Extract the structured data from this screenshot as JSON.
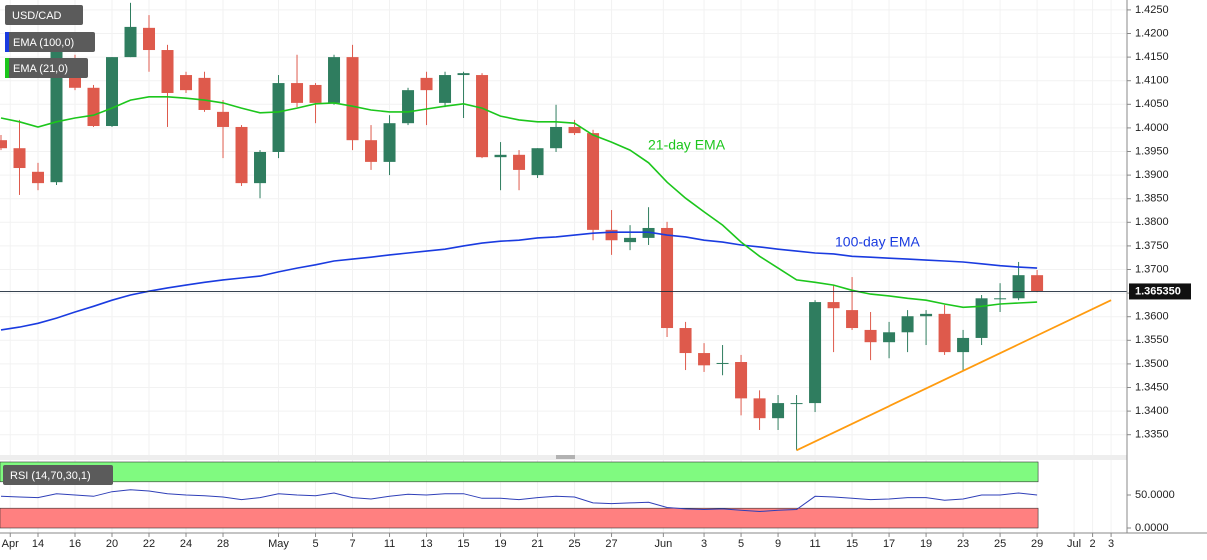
{
  "chart_data": [
    {
      "type": "candlestick",
      "symbol": "USD/CAD",
      "open": [
        1.3974,
        1.3957,
        1.3907,
        1.3885,
        1.4112,
        1.4085,
        1.4004,
        1.415,
        1.4212,
        1.4165,
        1.4112,
        1.4106,
        1.4034,
        1.4002,
        1.3883,
        1.3949,
        1.4095,
        1.4091,
        1.4053,
        1.415,
        1.3974,
        1.3928,
        1.401,
        1.4106,
        1.4053,
        1.4112,
        1.4112,
        1.3938,
        1.3943,
        1.39,
        1.3957,
        1.4002,
        1.3989,
        1.3784,
        1.3758,
        1.3767,
        1.3788,
        1.3576,
        1.3523,
        1.3502,
        1.3504,
        1.3427,
        1.3385,
        1.3417,
        1.3417,
        1.3631,
        1.3614,
        1.3572,
        1.3546,
        1.3567,
        1.3601,
        1.3606,
        1.3525,
        1.3555,
        1.3639,
        1.3639,
        1.3688
      ],
      "high": [
        1.3985,
        1.4017,
        1.3926,
        1.4176,
        1.4155,
        1.4091,
        1.415,
        1.4265,
        1.4239,
        1.4176,
        1.4119,
        1.4119,
        1.4059,
        1.4006,
        1.3953,
        1.4112,
        1.4155,
        1.4095,
        1.4155,
        1.4176,
        1.4006,
        1.4027,
        1.4085,
        1.4119,
        1.4119,
        1.4119,
        1.4116,
        1.397,
        1.3953,
        1.3957,
        1.4049,
        1.4017,
        1.3996,
        1.3826,
        1.3794,
        1.3832,
        1.3801,
        1.3589,
        1.3544,
        1.354,
        1.3519,
        1.3444,
        1.3434,
        1.3434,
        1.3635,
        1.3667,
        1.3684,
        1.361,
        1.3589,
        1.3614,
        1.3614,
        1.3625,
        1.3572,
        1.3646,
        1.3671,
        1.3716,
        1.3699
      ],
      "low": [
        1.3953,
        1.3858,
        1.3868,
        1.3879,
        1.408,
        1.4002,
        1.4002,
        1.415,
        1.4119,
        1.4002,
        1.4074,
        1.4034,
        1.3936,
        1.3877,
        1.3851,
        1.3936,
        1.4044,
        1.401,
        1.4049,
        1.3953,
        1.3911,
        1.39,
        1.4006,
        1.4006,
        1.4044,
        1.4021,
        1.3936,
        1.3868,
        1.3868,
        1.3894,
        1.3949,
        1.3985,
        1.3762,
        1.3731,
        1.3741,
        1.3752,
        1.3557,
        1.3487,
        1.3483,
        1.3476,
        1.3391,
        1.336,
        1.336,
        1.3317,
        1.3398,
        1.3525,
        1.3572,
        1.3508,
        1.3512,
        1.3525,
        1.354,
        1.3519,
        1.3487,
        1.354,
        1.361,
        1.3635,
        1.3652
      ],
      "close": [
        1.3957,
        1.3915,
        1.3883,
        1.4165,
        1.4085,
        1.4004,
        1.415,
        1.4214,
        1.4165,
        1.4074,
        1.408,
        1.4038,
        1.4002,
        1.3883,
        1.3949,
        1.4095,
        1.4053,
        1.4053,
        1.415,
        1.3974,
        1.3928,
        1.401,
        1.408,
        1.408,
        1.4112,
        1.4116,
        1.3938,
        1.3943,
        1.3911,
        1.3957,
        1.4002,
        1.3989,
        1.3784,
        1.3762,
        1.3767,
        1.3788,
        1.3576,
        1.3523,
        1.3497,
        1.3502,
        1.3427,
        1.3385,
        1.3417,
        1.3417,
        1.3631,
        1.3618,
        1.3576,
        1.3546,
        1.3567,
        1.3601,
        1.3606,
        1.3525,
        1.3555,
        1.3639,
        1.3639,
        1.3688,
        1.3654
      ],
      "up_color": "#2f7d5f",
      "down_color": "#de5a4c",
      "series": [
        {
          "name": "EMA (100,0)",
          "color": "#1a3be0",
          "values": [
            1.3572,
            1.3578,
            1.3586,
            1.3597,
            1.361,
            1.3622,
            1.3635,
            1.3646,
            1.3654,
            1.3661,
            1.3667,
            1.3673,
            1.3678,
            1.3682,
            1.3686,
            1.3695,
            1.3703,
            1.371,
            1.3718,
            1.3722,
            1.3726,
            1.3731,
            1.3735,
            1.3739,
            1.3743,
            1.375,
            1.3756,
            1.376,
            1.3762,
            1.3767,
            1.3769,
            1.3773,
            1.3777,
            1.3779,
            1.3779,
            1.3779,
            1.3773,
            1.3769,
            1.3762,
            1.3758,
            1.3752,
            1.3748,
            1.3743,
            1.3739,
            1.3735,
            1.3733,
            1.3728,
            1.3726,
            1.3724,
            1.3722,
            1.372,
            1.3718,
            1.3716,
            1.3712,
            1.3708,
            1.3705,
            1.3703
          ]
        },
        {
          "name": "EMA (21,0)",
          "color": "#1cc61c",
          "values": [
            1.4021,
            1.4013,
            1.4002,
            1.4013,
            1.4021,
            1.4027,
            1.4042,
            1.4059,
            1.4066,
            1.4066,
            1.4063,
            1.4059,
            1.4053,
            1.4042,
            1.4032,
            1.4034,
            1.4042,
            1.4051,
            1.4053,
            1.4046,
            1.4038,
            1.4034,
            1.4034,
            1.404,
            1.4046,
            1.4051,
            1.4042,
            1.4025,
            1.4017,
            1.4013,
            1.4013,
            1.401,
            1.3985,
            1.397,
            1.3953,
            1.3926,
            1.3885,
            1.3851,
            1.3822,
            1.3794,
            1.3758,
            1.3728,
            1.3703,
            1.3678,
            1.3673,
            1.3667,
            1.3656,
            1.3648,
            1.3644,
            1.3639,
            1.3635,
            1.3627,
            1.362,
            1.3622,
            1.3627,
            1.3629,
            1.3631
          ]
        }
      ],
      "annotations": [
        "100-day EMA",
        "21-day EMA"
      ],
      "trendline": {
        "x": [
          43,
          60
        ],
        "y": [
          1.3317,
          1.3635
        ],
        "color": "#ff9b0f"
      },
      "last_price": {
        "value": 1.36535,
        "label": "1.365350"
      },
      "xlim": [
        -0.054,
        60.86
      ],
      "ylim": [
        1.3307,
        1.4271
      ],
      "yticks": [
        {
          "value": 1.425,
          "label": "1.4250"
        },
        {
          "value": 1.42,
          "label": "1.4200"
        },
        {
          "value": 1.415,
          "label": "1.4150"
        },
        {
          "value": 1.41,
          "label": "1.4100"
        },
        {
          "value": 1.405,
          "label": "1.4050"
        },
        {
          "value": 1.4,
          "label": "1.4000"
        },
        {
          "value": 1.395,
          "label": "1.3950"
        },
        {
          "value": 1.39,
          "label": "1.3900"
        },
        {
          "value": 1.385,
          "label": "1.3850"
        },
        {
          "value": 1.38,
          "label": "1.3800"
        },
        {
          "value": 1.375,
          "label": "1.3750"
        },
        {
          "value": 1.37,
          "label": "1.3700"
        },
        {
          "value": 1.365,
          "label": "1.3650"
        },
        {
          "value": 1.36,
          "label": "1.3600"
        },
        {
          "value": 1.355,
          "label": "1.3550"
        },
        {
          "value": 1.35,
          "label": "1.3500"
        },
        {
          "value": 1.345,
          "label": "1.3450"
        },
        {
          "value": 1.34,
          "label": "1.3400"
        },
        {
          "value": 1.335,
          "label": "1.3350"
        }
      ],
      "xticks": [
        {
          "value": 0.5,
          "label": "Apr"
        },
        {
          "value": 2,
          "label": "14"
        },
        {
          "value": 4,
          "label": "16"
        },
        {
          "value": 6,
          "label": "20"
        },
        {
          "value": 8,
          "label": "22"
        },
        {
          "value": 10,
          "label": "24"
        },
        {
          "value": 12,
          "label": "28"
        },
        {
          "value": 15,
          "label": "May"
        },
        {
          "value": 17,
          "label": "5"
        },
        {
          "value": 19,
          "label": "7"
        },
        {
          "value": 21,
          "label": "11"
        },
        {
          "value": 23,
          "label": "13"
        },
        {
          "value": 25,
          "label": "15"
        },
        {
          "value": 27,
          "label": "19"
        },
        {
          "value": 29,
          "label": "21"
        },
        {
          "value": 31,
          "label": "25"
        },
        {
          "value": 33,
          "label": "27"
        },
        {
          "value": 35.8,
          "label": "Jun"
        },
        {
          "value": 38,
          "label": "3"
        },
        {
          "value": 40,
          "label": "5"
        },
        {
          "value": 42,
          "label": "9"
        },
        {
          "value": 44,
          "label": "11"
        },
        {
          "value": 46,
          "label": "15"
        },
        {
          "value": 48,
          "label": "17"
        },
        {
          "value": 50,
          "label": "19"
        },
        {
          "value": 52,
          "label": "23"
        },
        {
          "value": 54,
          "label": "25"
        },
        {
          "value": 56,
          "label": "29"
        },
        {
          "value": 58,
          "label": "Jul"
        },
        {
          "value": 59,
          "label": "2"
        },
        {
          "value": 60,
          "label": "3"
        }
      ],
      "grid": true
    },
    {
      "type": "line",
      "name": "RSI (14,70,30,1)",
      "color": "#2f3fb8",
      "values": [
        48,
        47,
        46,
        52,
        50,
        48,
        55,
        58,
        56,
        52,
        50,
        49,
        47,
        43,
        46,
        52,
        50,
        49,
        53,
        46,
        44,
        48,
        51,
        50,
        52,
        52,
        45,
        45,
        43,
        46,
        48,
        47,
        38,
        37,
        38,
        39,
        31,
        29,
        28,
        29,
        27,
        25,
        27,
        28,
        48,
        47,
        45,
        43,
        44,
        46,
        46,
        42,
        44,
        50,
        50,
        53,
        50
      ],
      "bands": [
        {
          "from": 70,
          "to": 100,
          "color": "#80fa80"
        },
        {
          "from": 0,
          "to": 30,
          "color": "#ff8080"
        }
      ],
      "ylim": [
        0,
        100
      ],
      "yticks": [
        {
          "value": 50,
          "label": "50.0000"
        },
        {
          "value": 0,
          "label": "0.0000"
        }
      ]
    }
  ]
}
